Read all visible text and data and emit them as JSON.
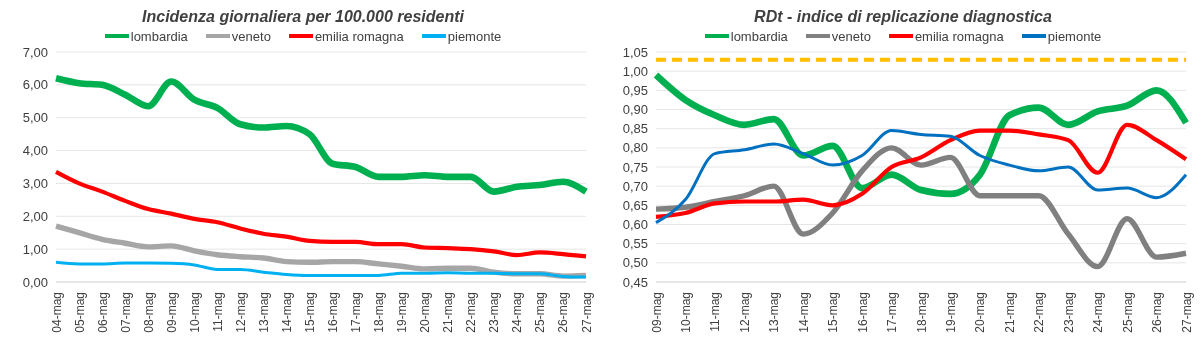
{
  "chart_data": [
    {
      "type": "line",
      "title": "Incidenza giornaliera per 100.000 residenti",
      "categories": [
        "04-mag",
        "05-mag",
        "06-mag",
        "07-mag",
        "08-mag",
        "09-mag",
        "10-mag",
        "11-mag",
        "12-mag",
        "13-mag",
        "14-mag",
        "15-mag",
        "16-mag",
        "17-mag",
        "18-mag",
        "19-mag",
        "20-mag",
        "21-mag",
        "22-mag",
        "23-mag",
        "24-mag",
        "25-mag",
        "26-mag",
        "27-mag"
      ],
      "series": [
        {
          "name": "lombardia",
          "color": "#00b050",
          "values": [
            6.2,
            6.05,
            6.0,
            5.7,
            5.35,
            6.1,
            5.55,
            5.3,
            4.8,
            4.7,
            4.75,
            4.5,
            3.6,
            3.5,
            3.2,
            3.2,
            3.25,
            3.2,
            3.2,
            2.75,
            2.9,
            2.95,
            3.05,
            2.75
          ]
        },
        {
          "name": "veneto",
          "color": "#a6a6a6",
          "values": [
            1.7,
            1.5,
            1.3,
            1.18,
            1.07,
            1.1,
            0.95,
            0.83,
            0.77,
            0.73,
            0.62,
            0.6,
            0.62,
            0.62,
            0.55,
            0.48,
            0.4,
            0.42,
            0.42,
            0.3,
            0.25,
            0.25,
            0.18,
            0.2
          ]
        },
        {
          "name": "emilia romagna",
          "color": "#ff0000",
          "values": [
            3.35,
            3.0,
            2.75,
            2.47,
            2.22,
            2.08,
            1.92,
            1.82,
            1.63,
            1.47,
            1.38,
            1.25,
            1.22,
            1.22,
            1.15,
            1.15,
            1.05,
            1.03,
            1.0,
            0.93,
            0.82,
            0.9,
            0.85,
            0.78
          ]
        },
        {
          "name": "piemonte",
          "color": "#00b0f0",
          "values": [
            0.6,
            0.55,
            0.55,
            0.58,
            0.58,
            0.57,
            0.52,
            0.38,
            0.38,
            0.3,
            0.23,
            0.2,
            0.2,
            0.2,
            0.2,
            0.27,
            0.27,
            0.28,
            0.27,
            0.27,
            0.25,
            0.25,
            0.17,
            0.15
          ]
        }
      ],
      "ylim": [
        0,
        7
      ],
      "yticks": [
        {
          "value": 0,
          "label": "0,00"
        },
        {
          "value": 1,
          "label": "1,00"
        },
        {
          "value": 2,
          "label": "2,00"
        },
        {
          "value": 3,
          "label": "3,00"
        },
        {
          "value": 4,
          "label": "4,00"
        },
        {
          "value": 5,
          "label": "5,00"
        },
        {
          "value": 6,
          "label": "6,00"
        },
        {
          "value": 7,
          "label": "7,00"
        }
      ],
      "grid": "y",
      "legend": "top",
      "marker": "none",
      "line_style": "solid"
    },
    {
      "type": "line",
      "title": "RDt - indice di replicazione diagnostica",
      "categories": [
        "09-mag",
        "10-mag",
        "11-mag",
        "12-mag",
        "13-mag",
        "14-mag",
        "15-mag",
        "16-mag",
        "17-mag",
        "18-mag",
        "19-mag",
        "20-mag",
        "21-mag",
        "22-mag",
        "23-mag",
        "24-mag",
        "25-mag",
        "26-mag",
        "27-mag"
      ],
      "series": [
        {
          "name": "lombardia",
          "color": "#00b050",
          "values": [
            0.99,
            0.925,
            0.885,
            0.86,
            0.875,
            0.78,
            0.805,
            0.695,
            0.73,
            0.69,
            0.68,
            0.73,
            0.885,
            0.905,
            0.86,
            0.895,
            0.91,
            0.95,
            0.865
          ]
        },
        {
          "name": "veneto",
          "color": "#808080",
          "values": [
            0.64,
            0.645,
            0.66,
            0.675,
            0.7,
            0.575,
            0.63,
            0.74,
            0.8,
            0.755,
            0.775,
            0.675,
            0.675,
            0.675,
            0.575,
            0.49,
            0.615,
            0.515,
            0.525
          ]
        },
        {
          "name": "emilia romagna",
          "color": "#ff0000",
          "values": [
            0.62,
            0.63,
            0.655,
            0.66,
            0.66,
            0.665,
            0.65,
            0.68,
            0.75,
            0.775,
            0.82,
            0.845,
            0.845,
            0.835,
            0.82,
            0.735,
            0.86,
            0.82,
            0.77
          ]
        },
        {
          "name": "piemonte",
          "color": "#0070c0",
          "values": [
            0.605,
            0.665,
            0.785,
            0.795,
            0.81,
            0.785,
            0.755,
            0.78,
            0.845,
            0.835,
            0.83,
            0.78,
            0.755,
            0.74,
            0.75,
            0.69,
            0.695,
            0.67,
            0.73
          ]
        }
      ],
      "ylim": [
        0.45,
        1.05
      ],
      "yticks": [
        {
          "value": 0.45,
          "label": "0,45"
        },
        {
          "value": 0.5,
          "label": "0,50"
        },
        {
          "value": 0.55,
          "label": "0,55"
        },
        {
          "value": 0.6,
          "label": "0,60"
        },
        {
          "value": 0.65,
          "label": "0,65"
        },
        {
          "value": 0.7,
          "label": "0,70"
        },
        {
          "value": 0.75,
          "label": "0,75"
        },
        {
          "value": 0.8,
          "label": "0,80"
        },
        {
          "value": 0.85,
          "label": "0,85"
        },
        {
          "value": 0.9,
          "label": "0,90"
        },
        {
          "value": 0.95,
          "label": "0,95"
        },
        {
          "value": 1.0,
          "label": "1,00"
        },
        {
          "value": 1.05,
          "label": "1,05"
        }
      ],
      "ref_lines": [
        {
          "axis": "y",
          "value": 1.03,
          "color": "#ffc000",
          "line_style": "dashed"
        }
      ],
      "grid": "y",
      "legend": "top",
      "marker": "none",
      "line_style": "solid"
    }
  ]
}
